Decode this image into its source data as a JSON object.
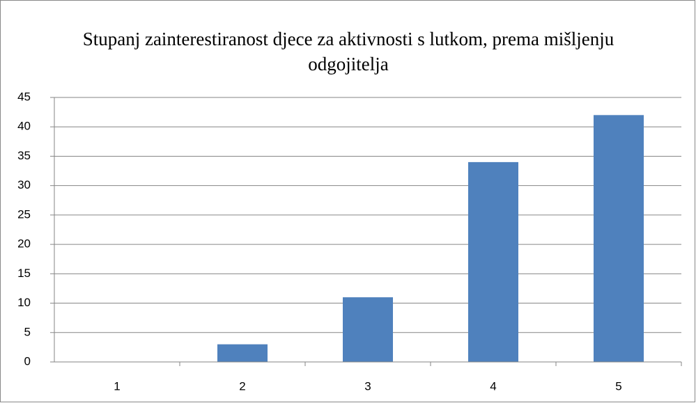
{
  "chart_data": {
    "type": "bar",
    "title": "Stupanj zainterestiranost djece za aktivnosti s lutkom, prema mišljenju odgojitelja",
    "categories": [
      "1",
      "2",
      "3",
      "4",
      "5"
    ],
    "values": [
      0,
      3,
      11,
      34,
      42
    ],
    "color": "#4f81bd",
    "ylim": [
      0,
      45
    ],
    "yticks": [
      0,
      5,
      10,
      15,
      20,
      25,
      30,
      35,
      40,
      45
    ],
    "grid": true
  }
}
